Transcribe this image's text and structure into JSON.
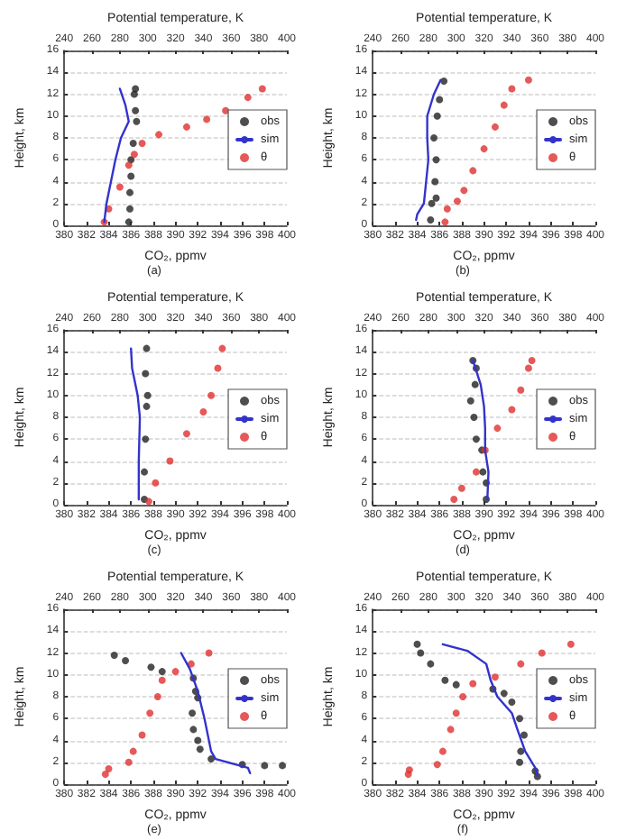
{
  "chart_data": [
    {
      "type": "scatter",
      "xlabel": "CO₂, ppmv",
      "x2label": "Potential temperature, K",
      "ylabel": "Height, km",
      "annotations": [
        "(a)"
      ],
      "xlim": [
        380,
        400
      ],
      "xticks": [
        380,
        382,
        384,
        386,
        388,
        390,
        392,
        394,
        396,
        398,
        400
      ],
      "x2lim": [
        240,
        400
      ],
      "x2ticks": [
        240,
        260,
        280,
        300,
        320,
        340,
        360,
        380,
        400
      ],
      "ylim": [
        0,
        16
      ],
      "yticks": [
        0,
        2,
        4,
        6,
        8,
        10,
        12,
        14,
        16
      ],
      "grid": "y",
      "legend": "right",
      "series": [
        {
          "name": "obs",
          "marker": "circle",
          "color": "#222222",
          "x": [
            385.8,
            385.9,
            385.9,
            386.0,
            386.0,
            386.2,
            386.5,
            386.4,
            386.3,
            386.4
          ],
          "values": [
            0.3,
            1.5,
            3,
            4.5,
            6,
            7.5,
            9.5,
            10.5,
            12,
            12.5
          ]
        },
        {
          "name": "sim",
          "type": "line",
          "marker": "none",
          "color": "#3333cc",
          "x": [
            383.6,
            383.8,
            384.2,
            384.6,
            385.1,
            385.8,
            385.5,
            385.0
          ],
          "values": [
            0.3,
            2,
            4,
            6,
            8,
            9.5,
            11,
            12.5
          ]
        },
        {
          "name": "θ",
          "marker": "circle",
          "axis": "x2",
          "color": "#e03030",
          "x": [
            268.8,
            272,
            280,
            286.4,
            290.4,
            296,
            308,
            328,
            342.4,
            356,
            372,
            382.4
          ],
          "values": [
            0.3,
            1.5,
            3.5,
            5.5,
            6.5,
            7.5,
            8.3,
            9,
            9.7,
            10.5,
            11.7,
            12.5
          ]
        }
      ]
    },
    {
      "type": "scatter",
      "xlabel": "CO₂, ppmv",
      "x2label": "Potential temperature, K",
      "ylabel": "Height, km",
      "annotations": [
        "(b)"
      ],
      "xlim": [
        380,
        400
      ],
      "xticks": [
        380,
        382,
        384,
        386,
        388,
        390,
        392,
        394,
        396,
        398,
        400
      ],
      "x2lim": [
        240,
        400
      ],
      "x2ticks": [
        240,
        260,
        280,
        300,
        320,
        340,
        360,
        380,
        400
      ],
      "ylim": [
        0,
        16
      ],
      "yticks": [
        0,
        2,
        4,
        6,
        8,
        10,
        12,
        14,
        16
      ],
      "grid": "y",
      "legend": "right",
      "series": [
        {
          "name": "obs",
          "marker": "circle",
          "color": "#222222",
          "x": [
            385.2,
            385.3,
            385.7,
            385.6,
            385.7,
            385.5,
            385.8,
            386.0,
            386.4
          ],
          "values": [
            0.5,
            2,
            2.5,
            4,
            6,
            8,
            10,
            11.5,
            13.2
          ]
        },
        {
          "name": "sim",
          "type": "line",
          "marker": "none",
          "color": "#3333cc",
          "x": [
            383.9,
            384.0,
            384.6,
            384.8,
            385.0,
            384.9,
            384.9,
            385.5,
            386.1
          ],
          "values": [
            0.5,
            1,
            2,
            4,
            6,
            8,
            10,
            12,
            13.3
          ]
        },
        {
          "name": "θ",
          "marker": "circle",
          "axis": "x2",
          "color": "#e03030",
          "x": [
            292,
            293.6,
            300.8,
            305.6,
            312,
            320,
            328,
            334.4,
            340,
            352
          ],
          "values": [
            0.3,
            1.5,
            2.2,
            3.2,
            5,
            7,
            9,
            11,
            12.5,
            13.3
          ]
        }
      ]
    },
    {
      "type": "scatter",
      "xlabel": "CO₂, ppmv",
      "x2label": "Potential temperature, K",
      "ylabel": "Height, km",
      "annotations": [
        "(c)"
      ],
      "xlim": [
        380,
        400
      ],
      "xticks": [
        380,
        382,
        384,
        386,
        388,
        390,
        392,
        394,
        396,
        398,
        400
      ],
      "x2lim": [
        240,
        400
      ],
      "x2ticks": [
        240,
        260,
        280,
        300,
        320,
        340,
        360,
        380,
        400
      ],
      "ylim": [
        0,
        16
      ],
      "yticks": [
        0,
        2,
        4,
        6,
        8,
        10,
        12,
        14,
        16
      ],
      "grid": "y",
      "legend": "right",
      "series": [
        {
          "name": "obs",
          "marker": "circle",
          "color": "#222222",
          "x": [
            387.2,
            387.2,
            387.3,
            387.4,
            387.5,
            387.3,
            387.4
          ],
          "values": [
            0.5,
            3,
            6,
            9,
            10,
            12,
            14.3
          ]
        },
        {
          "name": "sim",
          "type": "line",
          "marker": "none",
          "color": "#3333cc",
          "x": [
            386.7,
            386.7,
            386.8,
            386.6,
            386.1,
            386.0
          ],
          "values": [
            0.5,
            4,
            8,
            10,
            12.5,
            14.3
          ]
        },
        {
          "name": "θ",
          "marker": "circle",
          "axis": "x2",
          "color": "#e03030",
          "x": [
            300.8,
            305.6,
            316,
            328,
            340,
            345.6,
            350.4,
            353.6
          ],
          "values": [
            0.3,
            2,
            4,
            6.5,
            8.5,
            10,
            12.5,
            14.3
          ]
        }
      ]
    },
    {
      "type": "scatter",
      "xlabel": "CO₂, ppmv",
      "x2label": "Potential temperature, K",
      "ylabel": "Height, km",
      "annotations": [
        "(d)"
      ],
      "xlim": [
        380,
        400
      ],
      "xticks": [
        380,
        382,
        384,
        386,
        388,
        390,
        392,
        394,
        396,
        398,
        400
      ],
      "x2lim": [
        240,
        400
      ],
      "x2ticks": [
        240,
        260,
        280,
        300,
        320,
        340,
        360,
        380,
        400
      ],
      "ylim": [
        0,
        16
      ],
      "yticks": [
        0,
        2,
        4,
        6,
        8,
        10,
        12,
        14,
        16
      ],
      "grid": "y",
      "legend": "right",
      "series": [
        {
          "name": "obs",
          "marker": "circle",
          "color": "#222222",
          "x": [
            390.2,
            390.2,
            389.9,
            389.8,
            389.3,
            389.1,
            388.8,
            389.2,
            389.3,
            389.0
          ],
          "values": [
            0.5,
            2,
            3,
            5,
            6,
            8,
            9.5,
            11,
            12.5,
            13.2
          ]
        },
        {
          "name": "sim",
          "type": "line",
          "marker": "none",
          "color": "#3333cc",
          "x": [
            390.3,
            390.4,
            390.1,
            390.1,
            390.0,
            389.7,
            389.0
          ],
          "values": [
            0.5,
            3,
            5,
            7,
            9,
            11,
            13.2
          ]
        },
        {
          "name": "θ",
          "marker": "circle",
          "axis": "x2",
          "color": "#e03030",
          "x": [
            298.4,
            304,
            314.4,
            320.8,
            329.6,
            340,
            346.4,
            352,
            354.4
          ],
          "values": [
            0.5,
            1.5,
            3,
            5,
            7,
            8.7,
            10.5,
            12.5,
            13.2
          ]
        }
      ]
    },
    {
      "type": "scatter",
      "xlabel": "CO₂, ppmv",
      "x2label": "Potential temperature, K",
      "ylabel": "Height, km",
      "annotations": [
        "(e)"
      ],
      "xlim": [
        380,
        400
      ],
      "xticks": [
        380,
        382,
        384,
        386,
        388,
        390,
        392,
        394,
        396,
        398,
        400
      ],
      "x2lim": [
        240,
        400
      ],
      "x2ticks": [
        240,
        260,
        280,
        300,
        320,
        340,
        360,
        380,
        400
      ],
      "ylim": [
        0,
        16
      ],
      "yticks": [
        0,
        2,
        4,
        6,
        8,
        10,
        12,
        14,
        16
      ],
      "grid": "y",
      "legend": "right",
      "series": [
        {
          "name": "obs",
          "marker": "circle",
          "color": "#222222",
          "x": [
            384.5,
            385.5,
            387.8,
            388.8,
            391.6,
            391.8,
            392.0,
            391.5,
            391.6,
            392.0,
            392.2,
            393.2,
            396.0,
            398.0,
            399.6
          ],
          "values": [
            11.8,
            11.3,
            10.7,
            10.3,
            9.7,
            8.5,
            7.9,
            6.5,
            5,
            4,
            3.2,
            2.3,
            1.8,
            1.7,
            1.7
          ]
        },
        {
          "name": "sim",
          "type": "line",
          "marker": "none",
          "color": "#3333cc",
          "x": [
            390.5,
            391.3,
            392.0,
            392.6,
            393.2,
            393.6,
            396.5,
            396.7
          ],
          "values": [
            12,
            10.5,
            8.5,
            6,
            3,
            2.3,
            1.5,
            1
          ]
        },
        {
          "name": "θ",
          "marker": "circle",
          "axis": "x2",
          "color": "#e03030",
          "x": [
            269.6,
            272,
            286.4,
            289.6,
            296,
            301.6,
            307.2,
            310.4,
            320,
            331.2,
            344
          ],
          "values": [
            0.9,
            1.4,
            2,
            3,
            4.5,
            6.5,
            8,
            9.5,
            10.3,
            11,
            12
          ]
        }
      ]
    },
    {
      "type": "scatter",
      "xlabel": "CO₂, ppmv",
      "x2label": "Potential temperature, K",
      "ylabel": "Height, km",
      "annotations": [
        "(f)"
      ],
      "xlim": [
        380,
        400
      ],
      "xticks": [
        380,
        382,
        384,
        386,
        388,
        390,
        392,
        394,
        396,
        398,
        400
      ],
      "x2lim": [
        240,
        400
      ],
      "x2ticks": [
        240,
        260,
        280,
        300,
        320,
        340,
        360,
        380,
        400
      ],
      "ylim": [
        0,
        16
      ],
      "yticks": [
        0,
        2,
        4,
        6,
        8,
        10,
        12,
        14,
        16
      ],
      "grid": "y",
      "legend": "right",
      "series": [
        {
          "name": "obs",
          "marker": "circle",
          "color": "#222222",
          "x": [
            384.0,
            384.3,
            385.2,
            386.5,
            387.5,
            390.8,
            391.8,
            392.5,
            393.2,
            393.6,
            393.3,
            393.2,
            394.6,
            394.8
          ],
          "values": [
            12.8,
            12,
            11,
            9.5,
            9.1,
            8.7,
            8.3,
            7.5,
            6,
            4.5,
            3,
            2,
            1.2,
            0.7
          ]
        },
        {
          "name": "sim",
          "type": "line",
          "marker": "none",
          "color": "#3333cc",
          "x": [
            386.3,
            388.5,
            390.2,
            390.6,
            391.2,
            392.5,
            393.0,
            393.7,
            394.6,
            394.8
          ],
          "values": [
            12.8,
            12.2,
            11,
            9.5,
            8,
            6.5,
            5,
            3,
            1.5,
            0.8
          ]
        },
        {
          "name": "θ",
          "marker": "circle",
          "axis": "x2",
          "color": "#e03030",
          "x": [
            265.6,
            266.4,
            286.4,
            290.4,
            296,
            300,
            304.8,
            312,
            328,
            346.4,
            361.6,
            382.4
          ],
          "values": [
            0.9,
            1.3,
            1.8,
            3,
            5,
            6.5,
            8,
            9.2,
            9.8,
            11,
            12,
            12.8
          ]
        }
      ]
    }
  ]
}
